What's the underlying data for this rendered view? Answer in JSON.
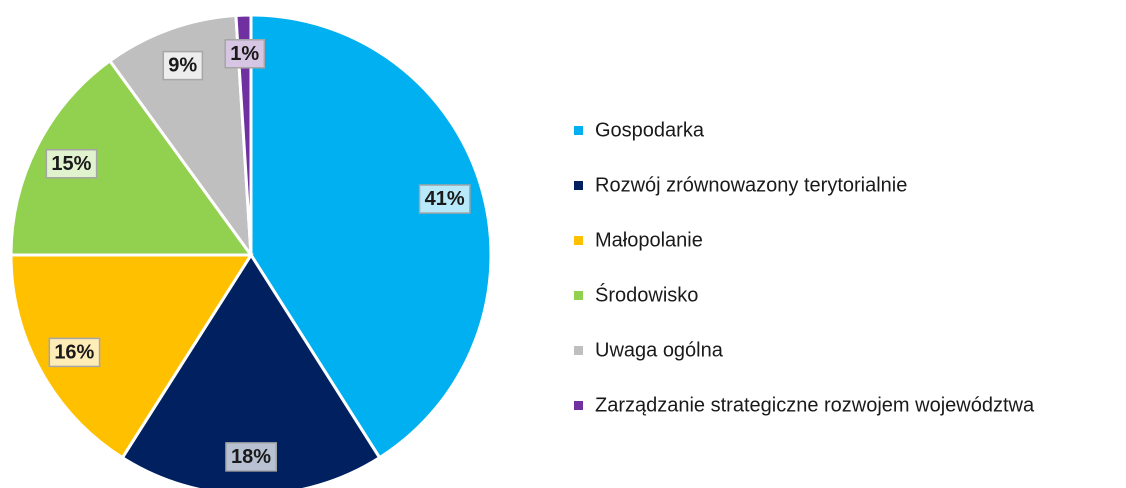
{
  "chart_data": {
    "type": "pie",
    "categories": [
      "Gospodarka",
      "Rozwój zrównowazony terytorialnie",
      "Małopolanie",
      "Środowisko",
      "Uwaga ogólna",
      "Zarządzanie strategiczne rozwojem województwa"
    ],
    "values": [
      41,
      18,
      16,
      15,
      9,
      1
    ],
    "value_labels": [
      "41%",
      "18%",
      "16%",
      "15%",
      "9%",
      "1%"
    ],
    "colors": [
      "#00b0f0",
      "#002060",
      "#ffc000",
      "#92d050",
      "#bfbfbf",
      "#7030a0"
    ],
    "legend": "right"
  }
}
